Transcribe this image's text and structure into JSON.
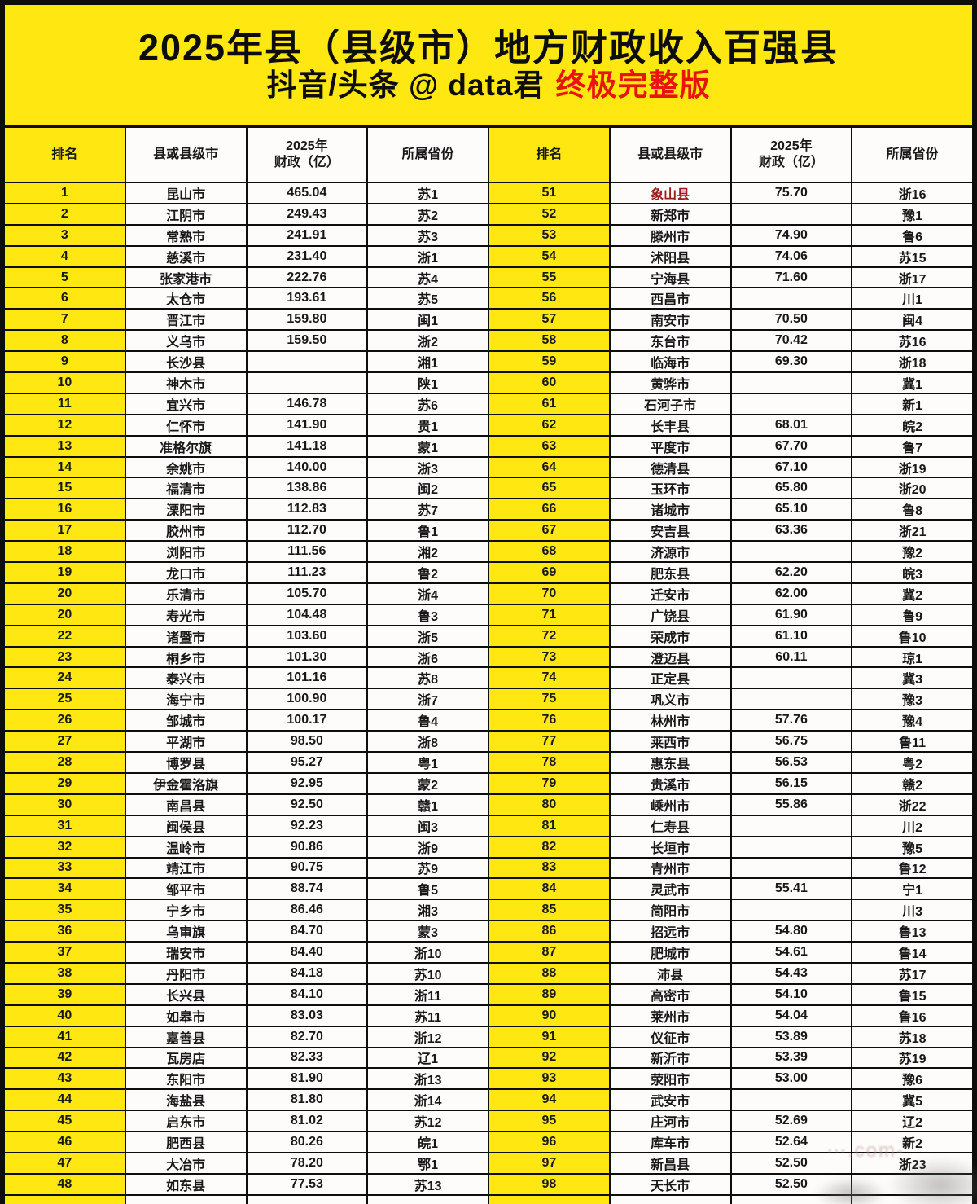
{
  "header": {
    "title": "2025年县（县级市）地方财政收入百强县",
    "subtitle_handle": "抖音/头条 @ data君",
    "subtitle_badge": "终极完整版"
  },
  "columns": [
    "排名",
    "县或县级市",
    "2025年\n财政（亿）",
    "所属省份"
  ],
  "colors": {
    "accent_yellow": "#ffe712",
    "badge_red": "#e8150a",
    "highlight_dark_red": "#9b1c1c"
  },
  "watermark": "⋯.com-",
  "left_rows": [
    {
      "r": "1",
      "n": "昆山市",
      "v": "465.04",
      "p": "苏1"
    },
    {
      "r": "2",
      "n": "江阴市",
      "v": "249.43",
      "p": "苏2"
    },
    {
      "r": "3",
      "n": "常熟市",
      "v": "241.91",
      "p": "苏3"
    },
    {
      "r": "4",
      "n": "慈溪市",
      "v": "231.40",
      "p": "浙1"
    },
    {
      "r": "5",
      "n": "张家港市",
      "v": "222.76",
      "p": "苏4"
    },
    {
      "r": "6",
      "n": "太仓市",
      "v": "193.61",
      "p": "苏5"
    },
    {
      "r": "7",
      "n": "晋江市",
      "v": "159.80",
      "p": "闽1"
    },
    {
      "r": "8",
      "n": "义乌市",
      "v": "159.50",
      "p": "浙2"
    },
    {
      "r": "9",
      "n": "长沙县",
      "v": "",
      "p": "湘1"
    },
    {
      "r": "10",
      "n": "神木市",
      "v": "",
      "p": "陕1"
    },
    {
      "r": "11",
      "n": "宜兴市",
      "v": "146.78",
      "p": "苏6"
    },
    {
      "r": "12",
      "n": "仁怀市",
      "v": "141.90",
      "p": "贵1"
    },
    {
      "r": "13",
      "n": "准格尔旗",
      "v": "141.18",
      "p": "蒙1"
    },
    {
      "r": "14",
      "n": "余姚市",
      "v": "140.00",
      "p": "浙3"
    },
    {
      "r": "15",
      "n": "福清市",
      "v": "138.86",
      "p": "闽2"
    },
    {
      "r": "16",
      "n": "溧阳市",
      "v": "112.83",
      "p": "苏7"
    },
    {
      "r": "17",
      "n": "胶州市",
      "v": "112.70",
      "p": "鲁1"
    },
    {
      "r": "18",
      "n": "浏阳市",
      "v": "111.56",
      "p": "湘2"
    },
    {
      "r": "19",
      "n": "龙口市",
      "v": "111.23",
      "p": "鲁2"
    },
    {
      "r": "20",
      "n": "乐清市",
      "v": "105.70",
      "p": "浙4"
    },
    {
      "r": "20",
      "n": "寿光市",
      "v": "104.48",
      "p": "鲁3"
    },
    {
      "r": "22",
      "n": "诸暨市",
      "v": "103.60",
      "p": "浙5"
    },
    {
      "r": "23",
      "n": "桐乡市",
      "v": "101.30",
      "p": "浙6"
    },
    {
      "r": "24",
      "n": "泰兴市",
      "v": "101.16",
      "p": "苏8"
    },
    {
      "r": "25",
      "n": "海宁市",
      "v": "100.90",
      "p": "浙7"
    },
    {
      "r": "26",
      "n": "邹城市",
      "v": "100.17",
      "p": "鲁4"
    },
    {
      "r": "27",
      "n": "平湖市",
      "v": "98.50",
      "p": "浙8"
    },
    {
      "r": "28",
      "n": "博罗县",
      "v": "95.27",
      "p": "粤1"
    },
    {
      "r": "29",
      "n": "伊金霍洛旗",
      "v": "92.95",
      "p": "蒙2"
    },
    {
      "r": "30",
      "n": "南昌县",
      "v": "92.50",
      "p": "赣1"
    },
    {
      "r": "31",
      "n": "闽侯县",
      "v": "92.23",
      "p": "闽3"
    },
    {
      "r": "32",
      "n": "温岭市",
      "v": "90.86",
      "p": "浙9"
    },
    {
      "r": "33",
      "n": "靖江市",
      "v": "90.75",
      "p": "苏9"
    },
    {
      "r": "34",
      "n": "邹平市",
      "v": "88.74",
      "p": "鲁5"
    },
    {
      "r": "35",
      "n": "宁乡市",
      "v": "86.46",
      "p": "湘3"
    },
    {
      "r": "36",
      "n": "乌审旗",
      "v": "84.70",
      "p": "蒙3"
    },
    {
      "r": "37",
      "n": "瑞安市",
      "v": "84.40",
      "p": "浙10"
    },
    {
      "r": "38",
      "n": "丹阳市",
      "v": "84.18",
      "p": "苏10"
    },
    {
      "r": "39",
      "n": "长兴县",
      "v": "84.10",
      "p": "浙11"
    },
    {
      "r": "40",
      "n": "如皋市",
      "v": "83.03",
      "p": "苏11"
    },
    {
      "r": "41",
      "n": "嘉善县",
      "v": "82.70",
      "p": "浙12"
    },
    {
      "r": "42",
      "n": "瓦房店",
      "v": "82.33",
      "p": "辽1"
    },
    {
      "r": "43",
      "n": "东阳市",
      "v": "81.90",
      "p": "浙13"
    },
    {
      "r": "44",
      "n": "海盐县",
      "v": "81.80",
      "p": "浙14"
    },
    {
      "r": "45",
      "n": "启东市",
      "v": "81.02",
      "p": "苏12"
    },
    {
      "r": "46",
      "n": "肥西县",
      "v": "80.26",
      "p": "皖1"
    },
    {
      "r": "47",
      "n": "大冶市",
      "v": "78.20",
      "p": "鄂1"
    },
    {
      "r": "48",
      "n": "如东县",
      "v": "77.53",
      "p": "苏13"
    }
  ],
  "right_rows": [
    {
      "r": "51",
      "n": "象山县",
      "v": "75.70",
      "p": "浙16",
      "hl": true
    },
    {
      "r": "52",
      "n": "新郑市",
      "v": "",
      "p": "豫1"
    },
    {
      "r": "53",
      "n": "滕州市",
      "v": "74.90",
      "p": "鲁6"
    },
    {
      "r": "54",
      "n": "沭阳县",
      "v": "74.06",
      "p": "苏15"
    },
    {
      "r": "55",
      "n": "宁海县",
      "v": "71.60",
      "p": "浙17"
    },
    {
      "r": "56",
      "n": "西昌市",
      "v": "",
      "p": "川1"
    },
    {
      "r": "57",
      "n": "南安市",
      "v": "70.50",
      "p": "闽4"
    },
    {
      "r": "58",
      "n": "东台市",
      "v": "70.42",
      "p": "苏16"
    },
    {
      "r": "59",
      "n": "临海市",
      "v": "69.30",
      "p": "浙18"
    },
    {
      "r": "60",
      "n": "黄骅市",
      "v": "",
      "p": "冀1"
    },
    {
      "r": "61",
      "n": "石河子市",
      "v": "",
      "p": "新1"
    },
    {
      "r": "62",
      "n": "长丰县",
      "v": "68.01",
      "p": "皖2"
    },
    {
      "r": "63",
      "n": "平度市",
      "v": "67.70",
      "p": "鲁7"
    },
    {
      "r": "64",
      "n": "德清县",
      "v": "67.10",
      "p": "浙19"
    },
    {
      "r": "65",
      "n": "玉环市",
      "v": "65.80",
      "p": "浙20"
    },
    {
      "r": "66",
      "n": "诸城市",
      "v": "65.10",
      "p": "鲁8"
    },
    {
      "r": "67",
      "n": "安吉县",
      "v": "63.36",
      "p": "浙21"
    },
    {
      "r": "68",
      "n": "济源市",
      "v": "",
      "p": "豫2"
    },
    {
      "r": "69",
      "n": "肥东县",
      "v": "62.20",
      "p": "皖3"
    },
    {
      "r": "70",
      "n": "迁安市",
      "v": "62.00",
      "p": "冀2"
    },
    {
      "r": "71",
      "n": "广饶县",
      "v": "61.90",
      "p": "鲁9"
    },
    {
      "r": "72",
      "n": "荣成市",
      "v": "61.10",
      "p": "鲁10"
    },
    {
      "r": "73",
      "n": "澄迈县",
      "v": "60.11",
      "p": "琼1"
    },
    {
      "r": "74",
      "n": "正定县",
      "v": "",
      "p": "冀3"
    },
    {
      "r": "75",
      "n": "巩义市",
      "v": "",
      "p": "豫3"
    },
    {
      "r": "76",
      "n": "林州市",
      "v": "57.76",
      "p": "豫4"
    },
    {
      "r": "77",
      "n": "莱西市",
      "v": "56.75",
      "p": "鲁11"
    },
    {
      "r": "78",
      "n": "惠东县",
      "v": "56.53",
      "p": "粤2"
    },
    {
      "r": "79",
      "n": "贵溪市",
      "v": "56.15",
      "p": "赣2"
    },
    {
      "r": "80",
      "n": "嵊州市",
      "v": "55.86",
      "p": "浙22"
    },
    {
      "r": "81",
      "n": "仁寿县",
      "v": "",
      "p": "川2"
    },
    {
      "r": "82",
      "n": "长垣市",
      "v": "",
      "p": "豫5"
    },
    {
      "r": "83",
      "n": "青州市",
      "v": "",
      "p": "鲁12"
    },
    {
      "r": "84",
      "n": "灵武市",
      "v": "55.41",
      "p": "宁1"
    },
    {
      "r": "85",
      "n": "简阳市",
      "v": "",
      "p": "川3"
    },
    {
      "r": "86",
      "n": "招远市",
      "v": "54.80",
      "p": "鲁13"
    },
    {
      "r": "87",
      "n": "肥城市",
      "v": "54.61",
      "p": "鲁14"
    },
    {
      "r": "88",
      "n": "沛县",
      "v": "54.43",
      "p": "苏17"
    },
    {
      "r": "89",
      "n": "高密市",
      "v": "54.10",
      "p": "鲁15"
    },
    {
      "r": "90",
      "n": "莱州市",
      "v": "54.04",
      "p": "鲁16"
    },
    {
      "r": "91",
      "n": "仪征市",
      "v": "53.89",
      "p": "苏18"
    },
    {
      "r": "92",
      "n": "新沂市",
      "v": "53.39",
      "p": "苏19"
    },
    {
      "r": "93",
      "n": "荥阳市",
      "v": "53.00",
      "p": "豫6"
    },
    {
      "r": "94",
      "n": "武安市",
      "v": "",
      "p": "冀5"
    },
    {
      "r": "95",
      "n": "庄河市",
      "v": "52.69",
      "p": "辽2"
    },
    {
      "r": "96",
      "n": "库车市",
      "v": "52.64",
      "p": "新2"
    },
    {
      "r": "97",
      "n": "新昌县",
      "v": "52.50",
      "p": "浙23"
    },
    {
      "r": "98",
      "n": "天长市",
      "v": "52.50",
      "p": ""
    }
  ]
}
